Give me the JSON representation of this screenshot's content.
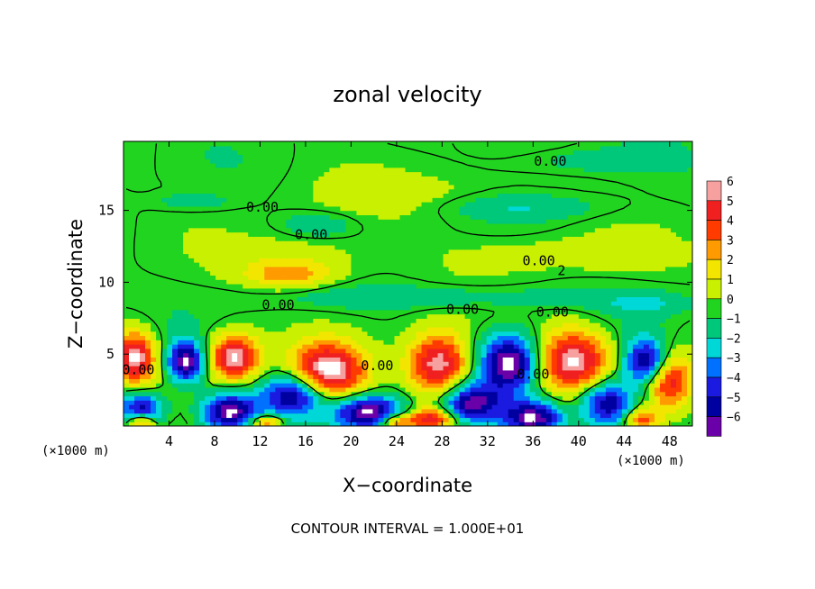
{
  "chart_data": {
    "type": "heatmap",
    "title": "zonal velocity",
    "xlabel": "X−coordinate",
    "ylabel": "Z−coordinate",
    "x_unit_left": "(×1000 m)",
    "x_unit_right": "(×1000 m)",
    "footer": "CONTOUR INTERVAL = 1.000E+01",
    "xlim": [
      0,
      50
    ],
    "ylim": [
      0,
      19.8
    ],
    "xticks": [
      4,
      8,
      12,
      16,
      20,
      24,
      28,
      32,
      36,
      40,
      44,
      48
    ],
    "xtick_labels": [
      "4",
      "8",
      "12",
      "16",
      "20",
      "24",
      "28",
      "32",
      "36",
      "40",
      "44",
      "48"
    ],
    "yticks": [
      5,
      10,
      15
    ],
    "ytick_labels": [
      "5",
      "10",
      "15"
    ],
    "colorbar": {
      "levels": [
        6,
        5,
        4,
        3,
        2,
        1,
        0,
        -1,
        -2,
        -3,
        -4,
        -5,
        -6
      ],
      "labels": [
        "6",
        "5",
        "4",
        "3",
        "2",
        "1",
        "0",
        "−1",
        "−2",
        "−3",
        "−4",
        "−5",
        "−6"
      ],
      "colors": [
        "#f6a0a0",
        "#f02020",
        "#ff3b00",
        "#ff9a00",
        "#f2e600",
        "#c8f000",
        "#20d420",
        "#00c87a",
        "#00d8d8",
        "#0070ff",
        "#1a1ae0",
        "#0000a0",
        "#6a00a8"
      ]
    },
    "contour_labels": [
      {
        "text": "0.00",
        "x": 37.5,
        "y": 18.1
      },
      {
        "text": "0.00",
        "x": 12.2,
        "y": 14.9
      },
      {
        "text": "0.00",
        "x": 16.5,
        "y": 13.0
      },
      {
        "text": "0.00",
        "x": 36.5,
        "y": 11.2
      },
      {
        "text": "2",
        "x": 38.5,
        "y": 10.5
      },
      {
        "text": "0.00",
        "x": 13.6,
        "y": 8.1
      },
      {
        "text": "0.00",
        "x": 29.8,
        "y": 7.8
      },
      {
        "text": "0.00",
        "x": 37.7,
        "y": 7.6
      },
      {
        "text": "0.00",
        "x": 1.3,
        "y": 3.6
      },
      {
        "text": "0.00",
        "x": 22.3,
        "y": 3.9
      },
      {
        "text": "0.00",
        "x": 36.0,
        "y": 3.3
      }
    ],
    "features": [
      {
        "v": 2.5,
        "x": 14.5,
        "y": 10.5,
        "rx": 3.5,
        "ry": 0.9
      },
      {
        "v": 1.5,
        "x": 16.0,
        "y": 11.5,
        "rx": 6.0,
        "ry": 1.8
      },
      {
        "v": 1.2,
        "x": 40.0,
        "y": 12.0,
        "rx": 10.0,
        "ry": 1.2
      },
      {
        "v": 1.0,
        "x": 27.0,
        "y": 16.0,
        "rx": 10.0,
        "ry": 1.6
      },
      {
        "v": -1.6,
        "x": 17.0,
        "y": 14.0,
        "rx": 3.0,
        "ry": 0.8
      },
      {
        "v": -1.5,
        "x": 35.0,
        "y": 15.3,
        "rx": 8.0,
        "ry": 0.9
      },
      {
        "v": -1.2,
        "x": 42.0,
        "y": 18.5,
        "rx": 6.0,
        "ry": 0.8
      },
      {
        "v": -1.3,
        "x": 6.0,
        "y": 15.6,
        "rx": 3.0,
        "ry": 0.6
      },
      {
        "v": -1.5,
        "x": 27.0,
        "y": 9.0,
        "rx": 14.0,
        "ry": 0.8
      },
      {
        "v": -1.4,
        "x": 46.0,
        "y": 8.5,
        "rx": 4.0,
        "ry": 0.8
      },
      {
        "v": 6.5,
        "x": 1.0,
        "y": 4.8,
        "rx": 1.8,
        "ry": 1.8
      },
      {
        "v": 6.5,
        "x": 9.7,
        "y": 4.8,
        "rx": 2.2,
        "ry": 1.6
      },
      {
        "v": 6.8,
        "x": 18.0,
        "y": 3.8,
        "rx": 3.2,
        "ry": 2.0
      },
      {
        "v": 6.5,
        "x": 27.7,
        "y": 4.3,
        "rx": 2.7,
        "ry": 2.2
      },
      {
        "v": 6.3,
        "x": 39.5,
        "y": 4.6,
        "rx": 3.2,
        "ry": 2.2
      },
      {
        "v": 5.5,
        "x": 48.0,
        "y": 3.2,
        "rx": 2.0,
        "ry": 2.0
      },
      {
        "v": -6.5,
        "x": 5.5,
        "y": 4.5,
        "rx": 1.6,
        "ry": 1.4
      },
      {
        "v": -5.5,
        "x": 1.5,
        "y": 1.2,
        "rx": 2.0,
        "ry": 1.2
      },
      {
        "v": -6.5,
        "x": 9.3,
        "y": 1.0,
        "rx": 2.4,
        "ry": 1.3
      },
      {
        "v": -6.0,
        "x": 15.0,
        "y": 2.2,
        "rx": 2.8,
        "ry": 1.5
      },
      {
        "v": -6.8,
        "x": 21.5,
        "y": 1.0,
        "rx": 3.0,
        "ry": 1.2
      },
      {
        "v": -6.0,
        "x": 30.5,
        "y": 1.6,
        "rx": 2.6,
        "ry": 1.4
      },
      {
        "v": -6.8,
        "x": 34.0,
        "y": 4.4,
        "rx": 2.6,
        "ry": 2.0
      },
      {
        "v": -6.5,
        "x": 36.0,
        "y": 0.6,
        "rx": 2.6,
        "ry": 1.2
      },
      {
        "v": -6.0,
        "x": 42.5,
        "y": 1.6,
        "rx": 2.4,
        "ry": 1.6
      },
      {
        "v": -6.0,
        "x": 46.0,
        "y": 4.5,
        "rx": 2.0,
        "ry": 1.6
      },
      {
        "v": 5.0,
        "x": 1.5,
        "y": 0.3,
        "rx": 1.2,
        "ry": 0.6
      },
      {
        "v": 4.5,
        "x": 12.5,
        "y": 0.3,
        "rx": 1.5,
        "ry": 0.5
      },
      {
        "v": 4.5,
        "x": 23.8,
        "y": 0.3,
        "rx": 1.4,
        "ry": 0.5
      },
      {
        "v": 5.5,
        "x": 27.0,
        "y": 0.5,
        "rx": 2.2,
        "ry": 0.8
      },
      {
        "v": 4.0,
        "x": 45.5,
        "y": 0.5,
        "rx": 1.5,
        "ry": 0.8
      }
    ]
  }
}
